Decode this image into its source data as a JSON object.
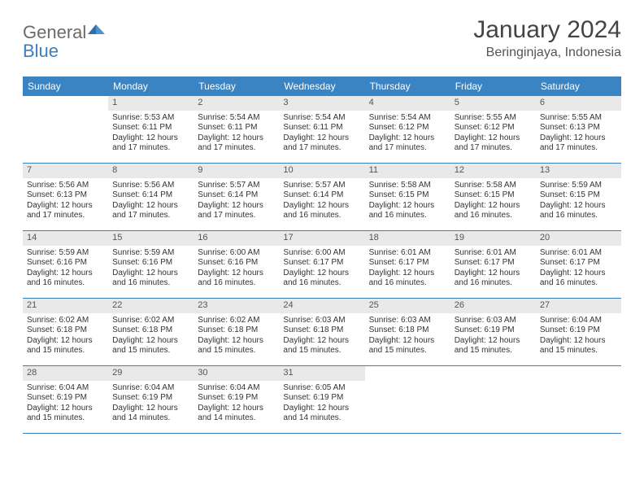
{
  "logo": {
    "text1": "General",
    "text2": "Blue"
  },
  "title": "January 2024",
  "location": "Beringinjaya, Indonesia",
  "colors": {
    "header_bg": "#3a84c4",
    "header_fg": "#ffffff",
    "daynum_bg": "#e9e9e9",
    "week_border": "#3a7fbf",
    "text": "#333333"
  },
  "day_names": [
    "Sunday",
    "Monday",
    "Tuesday",
    "Wednesday",
    "Thursday",
    "Friday",
    "Saturday"
  ],
  "weeks": [
    [
      null,
      {
        "n": "1",
        "sr": "5:53 AM",
        "ss": "6:11 PM",
        "dl": "12 hours and 17 minutes."
      },
      {
        "n": "2",
        "sr": "5:54 AM",
        "ss": "6:11 PM",
        "dl": "12 hours and 17 minutes."
      },
      {
        "n": "3",
        "sr": "5:54 AM",
        "ss": "6:11 PM",
        "dl": "12 hours and 17 minutes."
      },
      {
        "n": "4",
        "sr": "5:54 AM",
        "ss": "6:12 PM",
        "dl": "12 hours and 17 minutes."
      },
      {
        "n": "5",
        "sr": "5:55 AM",
        "ss": "6:12 PM",
        "dl": "12 hours and 17 minutes."
      },
      {
        "n": "6",
        "sr": "5:55 AM",
        "ss": "6:13 PM",
        "dl": "12 hours and 17 minutes."
      }
    ],
    [
      {
        "n": "7",
        "sr": "5:56 AM",
        "ss": "6:13 PM",
        "dl": "12 hours and 17 minutes."
      },
      {
        "n": "8",
        "sr": "5:56 AM",
        "ss": "6:14 PM",
        "dl": "12 hours and 17 minutes."
      },
      {
        "n": "9",
        "sr": "5:57 AM",
        "ss": "6:14 PM",
        "dl": "12 hours and 17 minutes."
      },
      {
        "n": "10",
        "sr": "5:57 AM",
        "ss": "6:14 PM",
        "dl": "12 hours and 16 minutes."
      },
      {
        "n": "11",
        "sr": "5:58 AM",
        "ss": "6:15 PM",
        "dl": "12 hours and 16 minutes."
      },
      {
        "n": "12",
        "sr": "5:58 AM",
        "ss": "6:15 PM",
        "dl": "12 hours and 16 minutes."
      },
      {
        "n": "13",
        "sr": "5:59 AM",
        "ss": "6:15 PM",
        "dl": "12 hours and 16 minutes."
      }
    ],
    [
      {
        "n": "14",
        "sr": "5:59 AM",
        "ss": "6:16 PM",
        "dl": "12 hours and 16 minutes."
      },
      {
        "n": "15",
        "sr": "5:59 AM",
        "ss": "6:16 PM",
        "dl": "12 hours and 16 minutes."
      },
      {
        "n": "16",
        "sr": "6:00 AM",
        "ss": "6:16 PM",
        "dl": "12 hours and 16 minutes."
      },
      {
        "n": "17",
        "sr": "6:00 AM",
        "ss": "6:17 PM",
        "dl": "12 hours and 16 minutes."
      },
      {
        "n": "18",
        "sr": "6:01 AM",
        "ss": "6:17 PM",
        "dl": "12 hours and 16 minutes."
      },
      {
        "n": "19",
        "sr": "6:01 AM",
        "ss": "6:17 PM",
        "dl": "12 hours and 16 minutes."
      },
      {
        "n": "20",
        "sr": "6:01 AM",
        "ss": "6:17 PM",
        "dl": "12 hours and 16 minutes."
      }
    ],
    [
      {
        "n": "21",
        "sr": "6:02 AM",
        "ss": "6:18 PM",
        "dl": "12 hours and 15 minutes."
      },
      {
        "n": "22",
        "sr": "6:02 AM",
        "ss": "6:18 PM",
        "dl": "12 hours and 15 minutes."
      },
      {
        "n": "23",
        "sr": "6:02 AM",
        "ss": "6:18 PM",
        "dl": "12 hours and 15 minutes."
      },
      {
        "n": "24",
        "sr": "6:03 AM",
        "ss": "6:18 PM",
        "dl": "12 hours and 15 minutes."
      },
      {
        "n": "25",
        "sr": "6:03 AM",
        "ss": "6:18 PM",
        "dl": "12 hours and 15 minutes."
      },
      {
        "n": "26",
        "sr": "6:03 AM",
        "ss": "6:19 PM",
        "dl": "12 hours and 15 minutes."
      },
      {
        "n": "27",
        "sr": "6:04 AM",
        "ss": "6:19 PM",
        "dl": "12 hours and 15 minutes."
      }
    ],
    [
      {
        "n": "28",
        "sr": "6:04 AM",
        "ss": "6:19 PM",
        "dl": "12 hours and 15 minutes."
      },
      {
        "n": "29",
        "sr": "6:04 AM",
        "ss": "6:19 PM",
        "dl": "12 hours and 14 minutes."
      },
      {
        "n": "30",
        "sr": "6:04 AM",
        "ss": "6:19 PM",
        "dl": "12 hours and 14 minutes."
      },
      {
        "n": "31",
        "sr": "6:05 AM",
        "ss": "6:19 PM",
        "dl": "12 hours and 14 minutes."
      },
      null,
      null,
      null
    ]
  ],
  "labels": {
    "sunrise": "Sunrise:",
    "sunset": "Sunset:",
    "daylight": "Daylight:"
  }
}
